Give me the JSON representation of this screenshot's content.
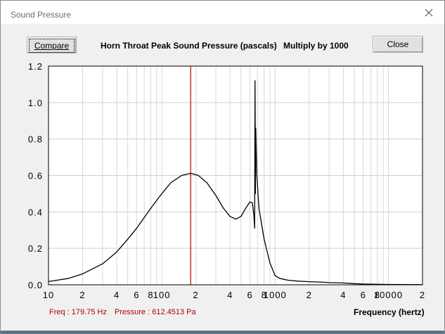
{
  "window": {
    "title": "Sound Pressure"
  },
  "buttons": {
    "compare_label": "Compare",
    "close_label": "Close"
  },
  "header": {
    "chart_title": "Horn Throat Peak Sound Pressure (pascals)",
    "multiplier": "Multiply by 1000"
  },
  "status": {
    "freq_label": "Freq :",
    "freq_value": "179.75 Hz",
    "pressure_label": "Pressure :",
    "pressure_value": "612.4513 Pa"
  },
  "chart_data": {
    "type": "line",
    "title": "Horn Throat Peak Sound Pressure (pascals)",
    "xlabel": "Frequency (hertz)",
    "ylabel": "",
    "x_scale": "log",
    "xlim": [
      10,
      20000
    ],
    "ylim": [
      0,
      1.2
    ],
    "grid": true,
    "y_ticks": [
      "0.0",
      "0.2",
      "0.4",
      "0.6",
      "0.8",
      "1.0",
      "1.2"
    ],
    "y_tick_values": [
      0,
      0.2,
      0.4,
      0.6,
      0.8,
      1.0,
      1.2
    ],
    "x_ticks": [
      {
        "value": 10,
        "label": "10"
      },
      {
        "value": 20,
        "label": "2"
      },
      {
        "value": 40,
        "label": "4"
      },
      {
        "value": 60,
        "label": "6"
      },
      {
        "value": 80,
        "label": "8"
      },
      {
        "value": 100,
        "label": "100"
      },
      {
        "value": 200,
        "label": "2"
      },
      {
        "value": 400,
        "label": "4"
      },
      {
        "value": 600,
        "label": "6"
      },
      {
        "value": 800,
        "label": "8"
      },
      {
        "value": 1000,
        "label": "1000"
      },
      {
        "value": 2000,
        "label": "2"
      },
      {
        "value": 4000,
        "label": "4"
      },
      {
        "value": 6000,
        "label": "6"
      },
      {
        "value": 8000,
        "label": "8"
      },
      {
        "value": 10000,
        "label": "10000"
      },
      {
        "value": 20000,
        "label": "2"
      }
    ],
    "cursor": {
      "x": 179.75,
      "color": "#b00000"
    },
    "series": [
      {
        "color": "#000000",
        "points": [
          [
            10,
            0.018
          ],
          [
            15,
            0.035
          ],
          [
            20,
            0.06
          ],
          [
            30,
            0.115
          ],
          [
            40,
            0.18
          ],
          [
            50,
            0.25
          ],
          [
            60,
            0.31
          ],
          [
            80,
            0.42
          ],
          [
            100,
            0.5
          ],
          [
            120,
            0.56
          ],
          [
            150,
            0.6
          ],
          [
            179.75,
            0.612
          ],
          [
            210,
            0.6
          ],
          [
            250,
            0.56
          ],
          [
            300,
            0.49
          ],
          [
            350,
            0.42
          ],
          [
            400,
            0.375
          ],
          [
            450,
            0.36
          ],
          [
            500,
            0.375
          ],
          [
            550,
            0.42
          ],
          [
            600,
            0.455
          ],
          [
            630,
            0.45
          ],
          [
            650,
            0.38
          ],
          [
            660,
            0.31
          ],
          [
            665,
            1.12
          ],
          [
            670,
            0.5
          ],
          [
            675,
            0.86
          ],
          [
            690,
            0.6
          ],
          [
            720,
            0.42
          ],
          [
            800,
            0.25
          ],
          [
            900,
            0.12
          ],
          [
            1000,
            0.05
          ],
          [
            1100,
            0.035
          ],
          [
            1300,
            0.025
          ],
          [
            1600,
            0.02
          ],
          [
            2000,
            0.017
          ],
          [
            2500,
            0.015
          ],
          [
            3000,
            0.012
          ],
          [
            4000,
            0.01
          ],
          [
            5000,
            0.006
          ],
          [
            6000,
            0.004
          ],
          [
            8000,
            0.003
          ],
          [
            10000,
            0.002
          ],
          [
            20000,
            0.001
          ]
        ]
      }
    ]
  }
}
